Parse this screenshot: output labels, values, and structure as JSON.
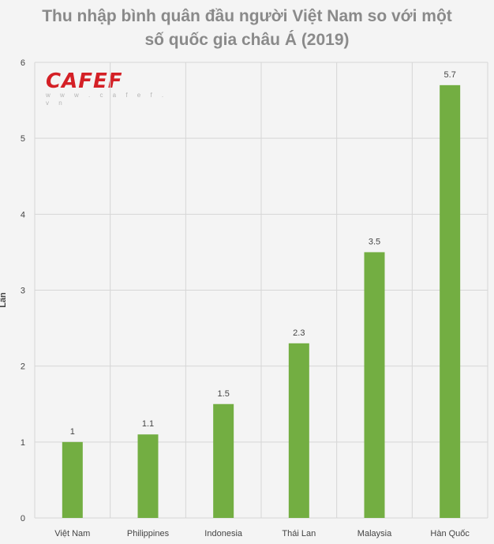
{
  "title_line1": "Thu nhập bình quân đầu người Việt Nam so với một",
  "title_line2": "số quốc gia châu Á (2019)",
  "logo": {
    "text": "CAFEF",
    "url": "w w w . c a f e f . v n",
    "color": "#d42026"
  },
  "chart_data": {
    "type": "bar",
    "title": "Thu nhập bình quân đầu người Việt Nam so với một số quốc gia châu Á (2019)",
    "ylabel": "Lần",
    "xlabel": "",
    "categories": [
      "Việt Nam",
      "Philippines",
      "Indonesia",
      "Thái Lan",
      "Malaysia",
      "Hàn Quốc"
    ],
    "values": [
      1,
      1.1,
      1.5,
      2.3,
      3.5,
      5.7
    ],
    "data_labels": [
      "1",
      "1.1",
      "1.5",
      "2.3",
      "3.5",
      "5.7"
    ],
    "ylim": [
      0,
      6
    ],
    "yticks": [
      0,
      1,
      2,
      3,
      4,
      5,
      6
    ],
    "grid": true,
    "bar_color": "#73ae42",
    "grid_color": "#d6d6d6"
  }
}
